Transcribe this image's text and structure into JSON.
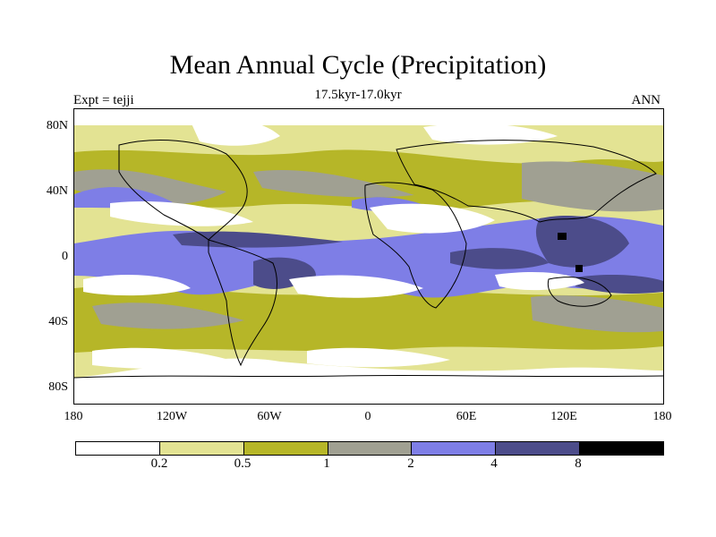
{
  "title": "Mean Annual Cycle (Precipitation)",
  "subtitle": "17.5kyr-17.0kyr",
  "left_label": "Expt = tejji",
  "right_label": "ANN",
  "lat_labels": [
    "80N",
    "40N",
    "0",
    "40S",
    "80S"
  ],
  "lon_labels": [
    "180",
    "120W",
    "60W",
    "0",
    "60E",
    "120E",
    "180"
  ],
  "colorbar": {
    "labels": [
      "0.2",
      "0.5",
      "1",
      "2",
      "4",
      "8"
    ],
    "colors": [
      "#ffffff",
      "#e3e393",
      "#b6b628",
      "#a0a092",
      "#7e7ee6",
      "#4c4c8a",
      "#000000"
    ]
  }
}
